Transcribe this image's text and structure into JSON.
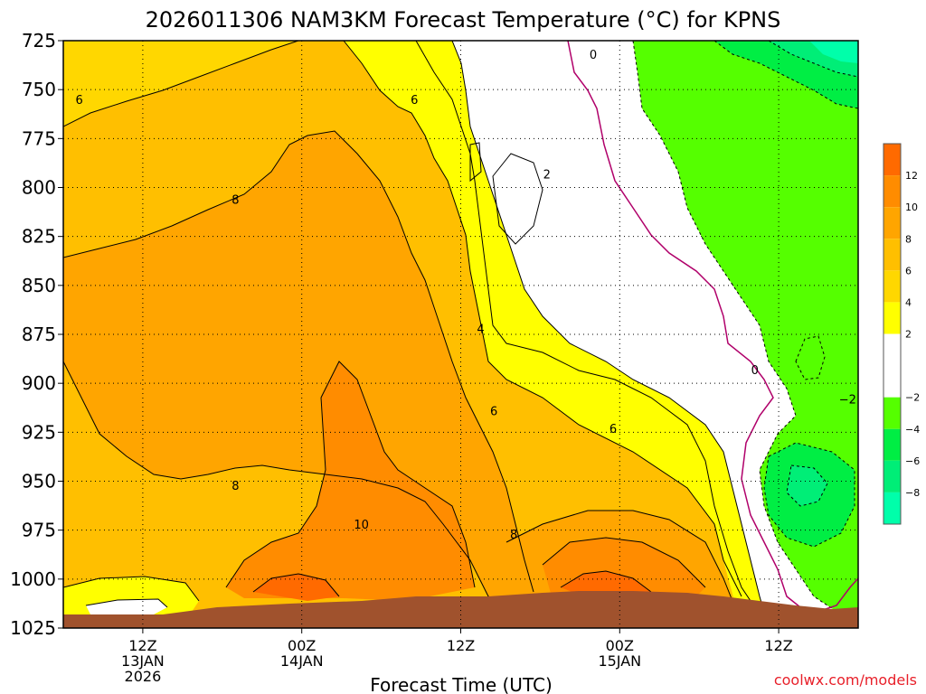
{
  "chart_data": {
    "type": "heatmap",
    "title": "2026011306 NAM3KM Forecast Temperature (°C) for KPNS",
    "xlabel": "Forecast Time (UTC)",
    "ylabel": "",
    "credit": "coolwx.com/models",
    "x_unit": "forecast hour",
    "xlim": [
      0,
      60
    ],
    "ylim": [
      1025,
      725
    ],
    "y_ticks": [
      725,
      750,
      775,
      800,
      825,
      850,
      875,
      900,
      925,
      950,
      975,
      1000,
      1025
    ],
    "x_ticks": [
      {
        "hour": 6,
        "line1": "12Z",
        "line2": "13JAN",
        "line3": "2026"
      },
      {
        "hour": 18,
        "line1": "00Z",
        "line2": "14JAN",
        "line3": ""
      },
      {
        "hour": 30,
        "line1": "12Z",
        "line2": "",
        "line3": ""
      },
      {
        "hour": 42,
        "line1": "00Z",
        "line2": "15JAN",
        "line3": ""
      },
      {
        "hour": 54,
        "line1": "12Z",
        "line2": "",
        "line3": ""
      }
    ],
    "colorbar": {
      "labels": [
        "12",
        "10",
        "8",
        "6",
        "4",
        "2",
        "−2",
        "−4",
        "−6",
        "−8"
      ],
      "bands": [
        {
          "min": 12,
          "max": 14,
          "color": "#ff6a00"
        },
        {
          "min": 10,
          "max": 12,
          "color": "#ff8c00"
        },
        {
          "min": 8,
          "max": 10,
          "color": "#ffa500"
        },
        {
          "min": 6,
          "max": 8,
          "color": "#ffbf00"
        },
        {
          "min": 4,
          "max": 6,
          "color": "#ffd700"
        },
        {
          "min": 2,
          "max": 4,
          "color": "#ffff00"
        },
        {
          "min": -2,
          "max": 2,
          "color": "#ffffff"
        },
        {
          "min": -4,
          "max": -2,
          "color": "#55ff00"
        },
        {
          "min": -6,
          "max": -4,
          "color": "#00ee44"
        },
        {
          "min": -8,
          "max": -6,
          "color": "#00ee77"
        },
        {
          "min": -10,
          "max": -8,
          "color": "#00ffaa"
        }
      ]
    },
    "contour_labels": [
      {
        "text": "6",
        "hour": 1.2,
        "p": 755
      },
      {
        "text": "6",
        "hour": 26.5,
        "p": 755
      },
      {
        "text": "8",
        "hour": 13,
        "p": 806
      },
      {
        "text": "0",
        "hour": 40,
        "p": 732
      },
      {
        "text": "2",
        "hour": 36.5,
        "p": 793
      },
      {
        "text": "4",
        "hour": 31.5,
        "p": 872
      },
      {
        "text": "6",
        "hour": 32.5,
        "p": 914
      },
      {
        "text": "6",
        "hour": 41.5,
        "p": 923
      },
      {
        "text": "0",
        "hour": 52.2,
        "p": 893
      },
      {
        "text": "−2",
        "hour": 59.2,
        "p": 908
      },
      {
        "text": "8",
        "hour": 13,
        "p": 952
      },
      {
        "text": "10",
        "hour": 22.5,
        "p": 972
      },
      {
        "text": "8",
        "hour": 34,
        "p": 977
      }
    ]
  }
}
